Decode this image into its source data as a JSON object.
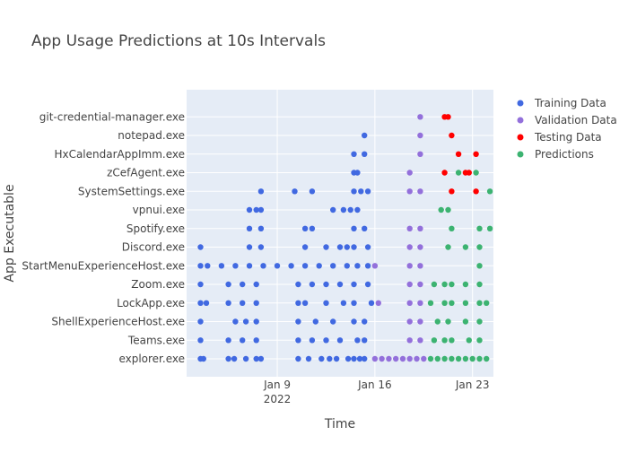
{
  "chart_data": {
    "type": "scatter",
    "title": "App Usage Predictions at 10s Intervals",
    "xlabel": "Time",
    "ylabel": "App Executable",
    "categories": [
      "explorer.exe",
      "Teams.exe",
      "ShellExperienceHost.exe",
      "LockApp.exe",
      "Zoom.exe",
      "StartMenuExperienceHost.exe",
      "Discord.exe",
      "Spotify.exe",
      "vpnui.exe",
      "SystemSettings.exe",
      "zCefAgent.exe",
      "HxCalendarAppImm.exe",
      "notepad.exe",
      "git-credential-manager.exe"
    ],
    "x_ticks": [
      {
        "date": "2022-01-09",
        "label": "Jan 9",
        "sublabel": "2022"
      },
      {
        "date": "2022-01-16",
        "label": "Jan 16",
        "sublabel": ""
      },
      {
        "date": "2022-01-23",
        "label": "Jan 23",
        "sublabel": ""
      }
    ],
    "xlim": [
      "2022-01-02T12:00",
      "2022-01-24T12:00"
    ],
    "grid": true,
    "legend_position": "top-right",
    "series": [
      {
        "name": "Training Data",
        "color": "#4169e1",
        "points": [
          {
            "x": "2022-01-03T12:00",
            "y": "explorer.exe"
          },
          {
            "x": "2022-01-03T17:00",
            "y": "explorer.exe"
          },
          {
            "x": "2022-01-05T12:00",
            "y": "explorer.exe"
          },
          {
            "x": "2022-01-05T22:00",
            "y": "explorer.exe"
          },
          {
            "x": "2022-01-06T18:00",
            "y": "explorer.exe"
          },
          {
            "x": "2022-01-07T12:00",
            "y": "explorer.exe"
          },
          {
            "x": "2022-01-07T20:00",
            "y": "explorer.exe"
          },
          {
            "x": "2022-01-10T12:00",
            "y": "explorer.exe"
          },
          {
            "x": "2022-01-11T06:00",
            "y": "explorer.exe"
          },
          {
            "x": "2022-01-12T04:00",
            "y": "explorer.exe"
          },
          {
            "x": "2022-01-12T18:00",
            "y": "explorer.exe"
          },
          {
            "x": "2022-01-13T06:00",
            "y": "explorer.exe"
          },
          {
            "x": "2022-01-14T02:00",
            "y": "explorer.exe"
          },
          {
            "x": "2022-01-14T12:00",
            "y": "explorer.exe"
          },
          {
            "x": "2022-01-14T22:00",
            "y": "explorer.exe"
          },
          {
            "x": "2022-01-15T06:00",
            "y": "explorer.exe"
          },
          {
            "x": "2022-01-03T12:00",
            "y": "Teams.exe"
          },
          {
            "x": "2022-01-05T12:00",
            "y": "Teams.exe"
          },
          {
            "x": "2022-01-06T12:00",
            "y": "Teams.exe"
          },
          {
            "x": "2022-01-07T12:00",
            "y": "Teams.exe"
          },
          {
            "x": "2022-01-10T12:00",
            "y": "Teams.exe"
          },
          {
            "x": "2022-01-11T12:00",
            "y": "Teams.exe"
          },
          {
            "x": "2022-01-12T12:00",
            "y": "Teams.exe"
          },
          {
            "x": "2022-01-13T12:00",
            "y": "Teams.exe"
          },
          {
            "x": "2022-01-14T18:00",
            "y": "Teams.exe"
          },
          {
            "x": "2022-01-15T06:00",
            "y": "Teams.exe"
          },
          {
            "x": "2022-01-03T12:00",
            "y": "ShellExperienceHost.exe"
          },
          {
            "x": "2022-01-06T00:00",
            "y": "ShellExperienceHost.exe"
          },
          {
            "x": "2022-01-06T18:00",
            "y": "ShellExperienceHost.exe"
          },
          {
            "x": "2022-01-07T12:00",
            "y": "ShellExperienceHost.exe"
          },
          {
            "x": "2022-01-10T12:00",
            "y": "ShellExperienceHost.exe"
          },
          {
            "x": "2022-01-11T18:00",
            "y": "ShellExperienceHost.exe"
          },
          {
            "x": "2022-01-13T00:00",
            "y": "ShellExperienceHost.exe"
          },
          {
            "x": "2022-01-14T12:00",
            "y": "ShellExperienceHost.exe"
          },
          {
            "x": "2022-01-15T06:00",
            "y": "ShellExperienceHost.exe"
          },
          {
            "x": "2022-01-03T12:00",
            "y": "LockApp.exe"
          },
          {
            "x": "2022-01-03T22:00",
            "y": "LockApp.exe"
          },
          {
            "x": "2022-01-05T12:00",
            "y": "LockApp.exe"
          },
          {
            "x": "2022-01-06T12:00",
            "y": "LockApp.exe"
          },
          {
            "x": "2022-01-07T12:00",
            "y": "LockApp.exe"
          },
          {
            "x": "2022-01-10T12:00",
            "y": "LockApp.exe"
          },
          {
            "x": "2022-01-11T00:00",
            "y": "LockApp.exe"
          },
          {
            "x": "2022-01-12T12:00",
            "y": "LockApp.exe"
          },
          {
            "x": "2022-01-13T18:00",
            "y": "LockApp.exe"
          },
          {
            "x": "2022-01-14T12:00",
            "y": "LockApp.exe"
          },
          {
            "x": "2022-01-15T18:00",
            "y": "LockApp.exe"
          },
          {
            "x": "2022-01-03T12:00",
            "y": "Zoom.exe"
          },
          {
            "x": "2022-01-05T12:00",
            "y": "Zoom.exe"
          },
          {
            "x": "2022-01-06T12:00",
            "y": "Zoom.exe"
          },
          {
            "x": "2022-01-07T12:00",
            "y": "Zoom.exe"
          },
          {
            "x": "2022-01-10T12:00",
            "y": "Zoom.exe"
          },
          {
            "x": "2022-01-11T12:00",
            "y": "Zoom.exe"
          },
          {
            "x": "2022-01-12T12:00",
            "y": "Zoom.exe"
          },
          {
            "x": "2022-01-13T12:00",
            "y": "Zoom.exe"
          },
          {
            "x": "2022-01-14T12:00",
            "y": "Zoom.exe"
          },
          {
            "x": "2022-01-15T12:00",
            "y": "Zoom.exe"
          },
          {
            "x": "2022-01-03T12:00",
            "y": "StartMenuExperienceHost.exe"
          },
          {
            "x": "2022-01-04T00:00",
            "y": "StartMenuExperienceHost.exe"
          },
          {
            "x": "2022-01-05T00:00",
            "y": "StartMenuExperienceHost.exe"
          },
          {
            "x": "2022-01-06T00:00",
            "y": "StartMenuExperienceHost.exe"
          },
          {
            "x": "2022-01-07T00:00",
            "y": "StartMenuExperienceHost.exe"
          },
          {
            "x": "2022-01-08T00:00",
            "y": "StartMenuExperienceHost.exe"
          },
          {
            "x": "2022-01-09T00:00",
            "y": "StartMenuExperienceHost.exe"
          },
          {
            "x": "2022-01-10T00:00",
            "y": "StartMenuExperienceHost.exe"
          },
          {
            "x": "2022-01-11T00:00",
            "y": "StartMenuExperienceHost.exe"
          },
          {
            "x": "2022-01-12T00:00",
            "y": "StartMenuExperienceHost.exe"
          },
          {
            "x": "2022-01-13T00:00",
            "y": "StartMenuExperienceHost.exe"
          },
          {
            "x": "2022-01-14T00:00",
            "y": "StartMenuExperienceHost.exe"
          },
          {
            "x": "2022-01-14T18:00",
            "y": "StartMenuExperienceHost.exe"
          },
          {
            "x": "2022-01-15T12:00",
            "y": "StartMenuExperienceHost.exe"
          },
          {
            "x": "2022-01-03T12:00",
            "y": "Discord.exe"
          },
          {
            "x": "2022-01-07T00:00",
            "y": "Discord.exe"
          },
          {
            "x": "2022-01-07T20:00",
            "y": "Discord.exe"
          },
          {
            "x": "2022-01-11T00:00",
            "y": "Discord.exe"
          },
          {
            "x": "2022-01-12T12:00",
            "y": "Discord.exe"
          },
          {
            "x": "2022-01-13T12:00",
            "y": "Discord.exe"
          },
          {
            "x": "2022-01-14T00:00",
            "y": "Discord.exe"
          },
          {
            "x": "2022-01-14T12:00",
            "y": "Discord.exe"
          },
          {
            "x": "2022-01-15T12:00",
            "y": "Discord.exe"
          },
          {
            "x": "2022-01-07T00:00",
            "y": "Spotify.exe"
          },
          {
            "x": "2022-01-07T20:00",
            "y": "Spotify.exe"
          },
          {
            "x": "2022-01-11T00:00",
            "y": "Spotify.exe"
          },
          {
            "x": "2022-01-11T12:00",
            "y": "Spotify.exe"
          },
          {
            "x": "2022-01-14T12:00",
            "y": "Spotify.exe"
          },
          {
            "x": "2022-01-15T06:00",
            "y": "Spotify.exe"
          },
          {
            "x": "2022-01-07T00:00",
            "y": "vpnui.exe"
          },
          {
            "x": "2022-01-07T12:00",
            "y": "vpnui.exe"
          },
          {
            "x": "2022-01-07T20:00",
            "y": "vpnui.exe"
          },
          {
            "x": "2022-01-13T00:00",
            "y": "vpnui.exe"
          },
          {
            "x": "2022-01-13T18:00",
            "y": "vpnui.exe"
          },
          {
            "x": "2022-01-14T06:00",
            "y": "vpnui.exe"
          },
          {
            "x": "2022-01-14T18:00",
            "y": "vpnui.exe"
          },
          {
            "x": "2022-01-07T20:00",
            "y": "SystemSettings.exe"
          },
          {
            "x": "2022-01-10T06:00",
            "y": "SystemSettings.exe"
          },
          {
            "x": "2022-01-11T12:00",
            "y": "SystemSettings.exe"
          },
          {
            "x": "2022-01-14T12:00",
            "y": "SystemSettings.exe"
          },
          {
            "x": "2022-01-15T00:00",
            "y": "SystemSettings.exe"
          },
          {
            "x": "2022-01-15T12:00",
            "y": "SystemSettings.exe"
          },
          {
            "x": "2022-01-14T12:00",
            "y": "zCefAgent.exe"
          },
          {
            "x": "2022-01-14T18:00",
            "y": "zCefAgent.exe"
          },
          {
            "x": "2022-01-14T12:00",
            "y": "HxCalendarAppImm.exe"
          },
          {
            "x": "2022-01-15T06:00",
            "y": "HxCalendarAppImm.exe"
          },
          {
            "x": "2022-01-15T06:00",
            "y": "notepad.exe"
          }
        ]
      },
      {
        "name": "Validation Data",
        "color": "#9370db",
        "points": [
          {
            "x": "2022-01-16T00:00",
            "y": "explorer.exe"
          },
          {
            "x": "2022-01-16T12:00",
            "y": "explorer.exe"
          },
          {
            "x": "2022-01-17T00:00",
            "y": "explorer.exe"
          },
          {
            "x": "2022-01-17T12:00",
            "y": "explorer.exe"
          },
          {
            "x": "2022-01-18T00:00",
            "y": "explorer.exe"
          },
          {
            "x": "2022-01-18T12:00",
            "y": "explorer.exe"
          },
          {
            "x": "2022-01-19T00:00",
            "y": "explorer.exe"
          },
          {
            "x": "2022-01-19T12:00",
            "y": "explorer.exe"
          },
          {
            "x": "2022-01-18T12:00",
            "y": "Teams.exe"
          },
          {
            "x": "2022-01-19T06:00",
            "y": "Teams.exe"
          },
          {
            "x": "2022-01-18T12:00",
            "y": "ShellExperienceHost.exe"
          },
          {
            "x": "2022-01-19T06:00",
            "y": "ShellExperienceHost.exe"
          },
          {
            "x": "2022-01-16T06:00",
            "y": "LockApp.exe"
          },
          {
            "x": "2022-01-18T12:00",
            "y": "LockApp.exe"
          },
          {
            "x": "2022-01-19T06:00",
            "y": "LockApp.exe"
          },
          {
            "x": "2022-01-18T12:00",
            "y": "Zoom.exe"
          },
          {
            "x": "2022-01-19T06:00",
            "y": "Zoom.exe"
          },
          {
            "x": "2022-01-16T00:00",
            "y": "StartMenuExperienceHost.exe"
          },
          {
            "x": "2022-01-18T12:00",
            "y": "StartMenuExperienceHost.exe"
          },
          {
            "x": "2022-01-19T06:00",
            "y": "StartMenuExperienceHost.exe"
          },
          {
            "x": "2022-01-18T12:00",
            "y": "Discord.exe"
          },
          {
            "x": "2022-01-19T06:00",
            "y": "Discord.exe"
          },
          {
            "x": "2022-01-18T12:00",
            "y": "Spotify.exe"
          },
          {
            "x": "2022-01-19T06:00",
            "y": "Spotify.exe"
          },
          {
            "x": "2022-01-18T12:00",
            "y": "SystemSettings.exe"
          },
          {
            "x": "2022-01-19T06:00",
            "y": "SystemSettings.exe"
          },
          {
            "x": "2022-01-18T12:00",
            "y": "zCefAgent.exe"
          },
          {
            "x": "2022-01-19T06:00",
            "y": "HxCalendarAppImm.exe"
          },
          {
            "x": "2022-01-19T06:00",
            "y": "notepad.exe"
          },
          {
            "x": "2022-01-19T06:00",
            "y": "git-credential-manager.exe"
          }
        ]
      },
      {
        "name": "Testing Data",
        "color": "#ff0000",
        "points": [
          {
            "x": "2022-01-21T00:00",
            "y": "git-credential-manager.exe"
          },
          {
            "x": "2022-01-21T06:00",
            "y": "git-credential-manager.exe"
          },
          {
            "x": "2022-01-21T12:00",
            "y": "notepad.exe"
          },
          {
            "x": "2022-01-22T00:00",
            "y": "HxCalendarAppImm.exe"
          },
          {
            "x": "2022-01-23T06:00",
            "y": "HxCalendarAppImm.exe"
          },
          {
            "x": "2022-01-21T00:00",
            "y": "zCefAgent.exe"
          },
          {
            "x": "2022-01-22T12:00",
            "y": "zCefAgent.exe"
          },
          {
            "x": "2022-01-22T18:00",
            "y": "zCefAgent.exe"
          },
          {
            "x": "2022-01-21T12:00",
            "y": "SystemSettings.exe"
          },
          {
            "x": "2022-01-23T06:00",
            "y": "SystemSettings.exe"
          }
        ]
      },
      {
        "name": "Predictions",
        "color": "#3cb371",
        "points": [
          {
            "x": "2022-01-20T00:00",
            "y": "explorer.exe"
          },
          {
            "x": "2022-01-20T12:00",
            "y": "explorer.exe"
          },
          {
            "x": "2022-01-21T00:00",
            "y": "explorer.exe"
          },
          {
            "x": "2022-01-21T12:00",
            "y": "explorer.exe"
          },
          {
            "x": "2022-01-22T00:00",
            "y": "explorer.exe"
          },
          {
            "x": "2022-01-22T12:00",
            "y": "explorer.exe"
          },
          {
            "x": "2022-01-23T00:00",
            "y": "explorer.exe"
          },
          {
            "x": "2022-01-23T12:00",
            "y": "explorer.exe"
          },
          {
            "x": "2022-01-24T00:00",
            "y": "explorer.exe"
          },
          {
            "x": "2022-01-20T06:00",
            "y": "Teams.exe"
          },
          {
            "x": "2022-01-21T00:00",
            "y": "Teams.exe"
          },
          {
            "x": "2022-01-21T12:00",
            "y": "Teams.exe"
          },
          {
            "x": "2022-01-22T18:00",
            "y": "Teams.exe"
          },
          {
            "x": "2022-01-23T12:00",
            "y": "Teams.exe"
          },
          {
            "x": "2022-01-20T12:00",
            "y": "ShellExperienceHost.exe"
          },
          {
            "x": "2022-01-21T06:00",
            "y": "ShellExperienceHost.exe"
          },
          {
            "x": "2022-01-22T12:00",
            "y": "ShellExperienceHost.exe"
          },
          {
            "x": "2022-01-23T12:00",
            "y": "ShellExperienceHost.exe"
          },
          {
            "x": "2022-01-20T00:00",
            "y": "LockApp.exe"
          },
          {
            "x": "2022-01-21T00:00",
            "y": "LockApp.exe"
          },
          {
            "x": "2022-01-21T12:00",
            "y": "LockApp.exe"
          },
          {
            "x": "2022-01-22T12:00",
            "y": "LockApp.exe"
          },
          {
            "x": "2022-01-23T12:00",
            "y": "LockApp.exe"
          },
          {
            "x": "2022-01-24T00:00",
            "y": "LockApp.exe"
          },
          {
            "x": "2022-01-20T06:00",
            "y": "Zoom.exe"
          },
          {
            "x": "2022-01-21T00:00",
            "y": "Zoom.exe"
          },
          {
            "x": "2022-01-21T12:00",
            "y": "Zoom.exe"
          },
          {
            "x": "2022-01-22T12:00",
            "y": "Zoom.exe"
          },
          {
            "x": "2022-01-23T12:00",
            "y": "Zoom.exe"
          },
          {
            "x": "2022-01-23T12:00",
            "y": "StartMenuExperienceHost.exe"
          },
          {
            "x": "2022-01-21T06:00",
            "y": "Discord.exe"
          },
          {
            "x": "2022-01-22T12:00",
            "y": "Discord.exe"
          },
          {
            "x": "2022-01-23T12:00",
            "y": "Discord.exe"
          },
          {
            "x": "2022-01-21T12:00",
            "y": "Spotify.exe"
          },
          {
            "x": "2022-01-23T12:00",
            "y": "Spotify.exe"
          },
          {
            "x": "2022-01-24T06:00",
            "y": "Spotify.exe"
          },
          {
            "x": "2022-01-20T18:00",
            "y": "vpnui.exe"
          },
          {
            "x": "2022-01-21T06:00",
            "y": "vpnui.exe"
          },
          {
            "x": "2022-01-24T06:00",
            "y": "SystemSettings.exe"
          },
          {
            "x": "2022-01-22T00:00",
            "y": "zCefAgent.exe"
          },
          {
            "x": "2022-01-23T06:00",
            "y": "zCefAgent.exe"
          }
        ]
      }
    ]
  }
}
